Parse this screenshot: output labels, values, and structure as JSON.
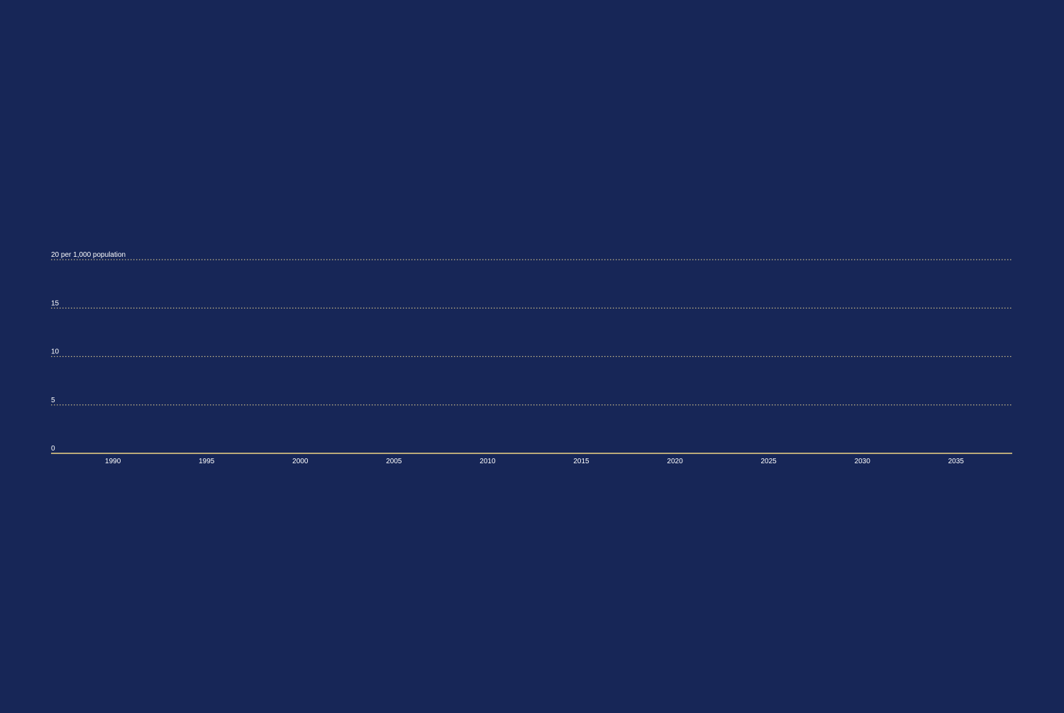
{
  "colors": {
    "background": "#172657",
    "gridline": "#c8b98a",
    "baseline": "#b9a97a",
    "text": "#ffffff"
  },
  "chart_data": {
    "type": "line",
    "title": "",
    "xlabel": "",
    "ylabel": "",
    "y_unit_label": "per 1,000 population",
    "xlim": [
      1986.7,
      2038.0
    ],
    "ylim": [
      0,
      20
    ],
    "x_ticks": [
      1990,
      1995,
      2000,
      2005,
      2010,
      2015,
      2020,
      2025,
      2030,
      2035
    ],
    "y_ticks": [
      0,
      5,
      10,
      15,
      20
    ],
    "x_tick_labels": [
      "1990",
      "1995",
      "2000",
      "2005",
      "2010",
      "2015",
      "2020",
      "2025",
      "2030",
      "2035"
    ],
    "y_tick_labels": [
      "0",
      "5",
      "10",
      "15",
      "20 per 1,000 population"
    ],
    "grid": true,
    "grid_style": "dotted",
    "legend": "none",
    "series": []
  }
}
